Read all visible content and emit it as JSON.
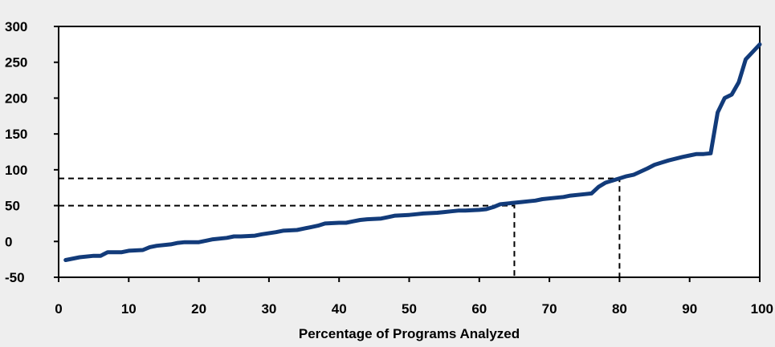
{
  "chart_data": {
    "type": "line",
    "title": "",
    "xlabel": "Percentage of Programs Analyzed",
    "ylabel": "",
    "xlim": [
      0,
      100
    ],
    "ylim": [
      -50,
      300
    ],
    "x_ticks": [
      0,
      10,
      20,
      30,
      40,
      50,
      60,
      70,
      80,
      90,
      100
    ],
    "y_ticks": [
      -50,
      0,
      50,
      100,
      150,
      200,
      250,
      300
    ],
    "grid": false,
    "colors": {
      "line": "#123b7a",
      "reference": "#000000",
      "background": "#eeeeee",
      "plot_background": "#ffffff"
    },
    "series": [
      {
        "x": [
          1,
          3,
          5,
          6,
          7,
          9,
          10,
          12,
          13,
          14,
          16,
          17,
          18,
          20,
          21,
          22,
          24,
          25,
          26,
          28,
          29,
          31,
          32,
          34,
          35,
          36,
          37,
          38,
          40,
          41,
          42,
          43,
          44,
          46,
          47,
          48,
          50,
          51,
          52,
          54,
          55,
          56,
          57,
          58,
          60,
          61,
          62,
          63,
          65,
          66,
          67,
          68,
          69,
          71,
          72,
          73,
          75,
          76,
          77,
          78,
          80,
          81,
          82,
          84,
          85,
          86,
          87,
          89,
          90,
          91,
          92,
          93,
          94,
          95,
          96,
          97,
          98,
          100
        ],
        "values": [
          -26,
          -22,
          -20,
          -20,
          -15,
          -15,
          -13,
          -12,
          -8,
          -6,
          -4,
          -2,
          -1,
          -1,
          1,
          3,
          5,
          7,
          7,
          8,
          10,
          13,
          15,
          16,
          18,
          20,
          22,
          25,
          26,
          26,
          28,
          30,
          31,
          32,
          34,
          36,
          37,
          38,
          39,
          40,
          41,
          42,
          43,
          43,
          44,
          45,
          48,
          52,
          54,
          55,
          56,
          57,
          59,
          61,
          62,
          64,
          66,
          67,
          76,
          82,
          88,
          91,
          93,
          102,
          107,
          110,
          113,
          118,
          120,
          122,
          122,
          123,
          180,
          200,
          205,
          222,
          254,
          275
        ]
      }
    ],
    "reference_lines": [
      {
        "x": 65,
        "y": 50
      },
      {
        "x": 80,
        "y": 88
      }
    ]
  }
}
